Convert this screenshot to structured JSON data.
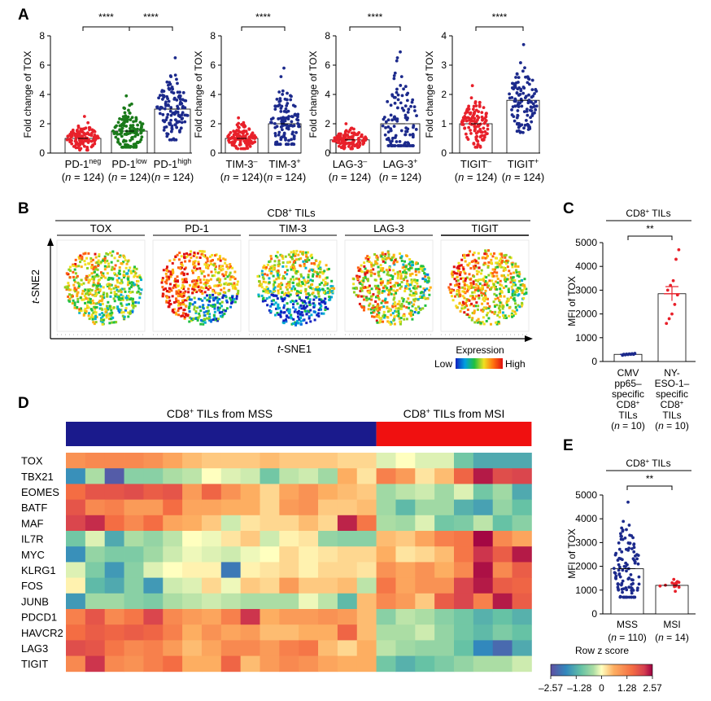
{
  "panel_letters": [
    "A",
    "B",
    "C",
    "D",
    "E"
  ],
  "colors": {
    "red": "#e8202a",
    "green": "#1a7a1a",
    "navy": "#1c2a8c",
    "heat_mss": "#1a1a8c",
    "heat_msi": "#f01010"
  },
  "chart_data": [
    {
      "panel": "A",
      "type": "scatter",
      "subtype": "dot-plot with mean bars",
      "title": "",
      "ylabel": "Fold change of TOX",
      "groups": [
        {
          "ylim": [
            0,
            8
          ],
          "yticks": [
            "0",
            "2",
            "4",
            "6",
            "8"
          ],
          "categories": [
            {
              "base": "PD-1",
              "sup": "neg",
              "n": "124",
              "mean": 1.0,
              "min": 0.2,
              "max": 2.5,
              "color": "#e8202a"
            },
            {
              "base": "PD-1",
              "sup": "low",
              "n": "124",
              "mean": 1.5,
              "min": 0.4,
              "max": 3.9,
              "color": "#1a7a1a"
            },
            {
              "base": "PD-1",
              "sup": "high",
              "n": "124",
              "mean": 3.0,
              "min": 0.9,
              "max": 6.5,
              "color": "#1c2a8c"
            }
          ],
          "comparisons": [
            {
              "from": 0,
              "to": 1,
              "label": "****"
            },
            {
              "from": 1,
              "to": 2,
              "label": "****"
            }
          ]
        },
        {
          "ylim": [
            0,
            8
          ],
          "yticks": [
            "0",
            "2",
            "4",
            "6",
            "8"
          ],
          "categories": [
            {
              "base": "TIM-3",
              "sup": "–",
              "n": "124",
              "mean": 1.0,
              "min": 0.3,
              "max": 2.4,
              "color": "#e8202a"
            },
            {
              "base": "TIM-3",
              "sup": "+",
              "n": "124",
              "mean": 2.0,
              "min": 0.6,
              "max": 5.8,
              "color": "#1c2a8c"
            }
          ],
          "comparisons": [
            {
              "from": 0,
              "to": 1,
              "label": "****"
            }
          ]
        },
        {
          "ylim": [
            0,
            8
          ],
          "yticks": [
            "0",
            "2",
            "4",
            "6",
            "8"
          ],
          "categories": [
            {
              "base": "LAG-3",
              "sup": "–",
              "n": "124",
              "mean": 0.9,
              "min": 0.3,
              "max": 2.0,
              "color": "#e8202a"
            },
            {
              "base": "LAG-3",
              "sup": "+",
              "n": "124",
              "mean": 2.0,
              "min": 0.5,
              "max": 6.9,
              "color": "#1c2a8c"
            }
          ],
          "comparisons": [
            {
              "from": 0,
              "to": 1,
              "label": "****"
            }
          ]
        },
        {
          "ylim": [
            0,
            4
          ],
          "yticks": [
            "0",
            "1",
            "2",
            "3",
            "4"
          ],
          "categories": [
            {
              "base": "TIGIT",
              "sup": "–",
              "n": "124",
              "mean": 1.0,
              "min": 0.2,
              "max": 2.3,
              "color": "#e8202a"
            },
            {
              "base": "TIGIT",
              "sup": "+",
              "n": "124",
              "mean": 1.8,
              "min": 0.7,
              "max": 3.7,
              "color": "#1c2a8c"
            }
          ],
          "comparisons": [
            {
              "from": 0,
              "to": 1,
              "label": "****"
            }
          ]
        }
      ]
    },
    {
      "panel": "B",
      "type": "scatter",
      "subtype": "t-SNE feature plots",
      "title": "CD8+ TILs",
      "title_parts": {
        "base": "CD8",
        "sup": "+",
        "rest": " TILs"
      },
      "markers": [
        "TOX",
        "PD-1",
        "TIM-3",
        "LAG-3",
        "TIGIT"
      ],
      "xlabel": {
        "italic": "t",
        "rest": "-SNE1"
      },
      "ylabel": {
        "italic": "t",
        "rest": "-SNE2"
      },
      "legend": {
        "title": "Expression",
        "low": "Low",
        "high": "High"
      }
    },
    {
      "panel": "C",
      "type": "bar",
      "title": "CD8+ TILs",
      "title_parts": {
        "base": "CD8",
        "sup": "+",
        "rest": " TILs"
      },
      "ylabel": "MFI of TOX",
      "ylim": [
        0,
        5000
      ],
      "yticks": [
        "0",
        "1000",
        "2000",
        "3000",
        "4000",
        "5000"
      ],
      "categories": [
        {
          "lines": [
            "CMV",
            "pp65–",
            "specific",
            "CD8+",
            "TILs",
            "(n = 10)"
          ],
          "mean": 300,
          "sem": 15,
          "color": "#1c2a8c",
          "points": [
            260,
            280,
            290,
            300,
            300,
            305,
            310,
            320,
            330,
            340
          ]
        },
        {
          "lines": [
            "NY-",
            "ESO-1–",
            "specific",
            "CD8+",
            "TILs",
            "(n = 10)"
          ],
          "mean": 2850,
          "sem": 300,
          "color": "#e8202a",
          "points": [
            1600,
            1800,
            2000,
            2400,
            2800,
            3000,
            3200,
            3400,
            4300,
            4700
          ]
        }
      ],
      "comparisons": [
        {
          "from": 0,
          "to": 1,
          "label": "**"
        }
      ]
    },
    {
      "panel": "D",
      "type": "heatmap",
      "groups": [
        {
          "label": "CD8+ TILs from MSS",
          "base": "CD8",
          "sup": "+",
          "rest": " TILs from MSS",
          "columns": 16,
          "color": "#1a1a8c"
        },
        {
          "label": "CD8+ TILs from MSI",
          "base": "CD8",
          "sup": "+",
          "rest": " TILs from MSI",
          "columns": 8,
          "color": "#f01010"
        }
      ],
      "rows": [
        "TOX",
        "TBX21",
        "EOMES",
        "BATF",
        "MAF",
        "IL7R",
        "MYC",
        "KLRG1",
        "FOS",
        "JUNB",
        "PDCD1",
        "HAVCR2",
        "LAG3",
        "TIGIT"
      ],
      "values": [
        [
          0.9,
          1.0,
          1.0,
          1.0,
          0.9,
          0.7,
          0.5,
          0.4,
          0.4,
          0.4,
          0.5,
          0.4,
          0.4,
          0.4,
          0.3,
          0.3,
          -0.2,
          0.0,
          -0.2,
          -0.2,
          -1.0,
          -1.4,
          -1.4,
          -1.4
        ],
        [
          -1.7,
          -0.5,
          -2.4,
          -0.8,
          -0.8,
          -0.5,
          -0.4,
          0.0,
          -0.2,
          -0.3,
          -1.0,
          -0.4,
          -0.3,
          -0.6,
          0.6,
          0.2,
          1.1,
          0.8,
          0.2,
          0.5,
          1.4,
          2.3,
          1.7,
          1.8
        ],
        [
          1.3,
          1.6,
          1.6,
          1.7,
          1.5,
          1.6,
          0.8,
          1.4,
          0.9,
          0.6,
          0.3,
          0.7,
          0.9,
          0.6,
          0.5,
          0.4,
          -0.6,
          -0.4,
          -0.3,
          -0.6,
          -0.2,
          -1.0,
          -0.6,
          -1.4
        ],
        [
          1.6,
          1.0,
          1.1,
          0.8,
          0.8,
          1.3,
          0.7,
          0.7,
          0.6,
          0.6,
          0.3,
          0.8,
          0.9,
          0.4,
          0.4,
          0.5,
          -0.6,
          -1.2,
          -0.6,
          -0.6,
          -1.3,
          -1.5,
          -0.7,
          -1.1
        ],
        [
          1.8,
          2.1,
          1.3,
          1.0,
          1.3,
          0.7,
          0.6,
          0.4,
          -0.3,
          0.2,
          0.3,
          0.3,
          0.5,
          0.3,
          2.2,
          1.2,
          -0.5,
          -0.6,
          -0.2,
          -1.0,
          -0.9,
          -0.4,
          -1.1,
          -0.8
        ],
        [
          -1.0,
          -0.2,
          -1.4,
          -0.5,
          -0.7,
          -0.4,
          0.0,
          -0.1,
          0.2,
          0.4,
          -0.3,
          0.1,
          0.2,
          -0.7,
          -0.8,
          -0.8,
          0.5,
          0.4,
          0.7,
          1.1,
          1.2,
          2.5,
          1.0,
          0.7
        ],
        [
          -1.7,
          -0.7,
          -0.9,
          -0.9,
          -0.6,
          -0.3,
          -0.1,
          -0.2,
          -0.3,
          -0.1,
          0.0,
          0.3,
          0.1,
          0.2,
          0.3,
          0.3,
          0.6,
          0.2,
          0.3,
          0.5,
          1.2,
          2.0,
          1.5,
          2.3
        ],
        [
          -0.2,
          -0.9,
          -1.6,
          -0.8,
          -0.2,
          0.0,
          0.1,
          0.1,
          -2.0,
          0.1,
          0.2,
          0.3,
          0.1,
          0.3,
          0.3,
          0.2,
          0.9,
          0.7,
          0.9,
          0.6,
          1.0,
          2.4,
          1.0,
          1.5
        ],
        [
          0.1,
          -1.2,
          -1.4,
          -0.8,
          -1.6,
          -0.3,
          -0.2,
          0.3,
          -0.1,
          0.4,
          0.3,
          0.8,
          0.4,
          0.4,
          0.5,
          -0.4,
          1.2,
          0.7,
          0.9,
          0.9,
          1.8,
          2.3,
          1.5,
          1.4
        ],
        [
          -1.6,
          -0.6,
          -0.6,
          -0.8,
          -0.9,
          -0.5,
          -0.4,
          -0.3,
          -0.4,
          -0.5,
          -0.5,
          -0.5,
          -0.1,
          -0.4,
          -1.2,
          0.5,
          1.0,
          0.8,
          0.4,
          1.5,
          1.8,
          1.1,
          2.3,
          1.5
        ],
        [
          1.1,
          1.6,
          1.0,
          1.2,
          1.8,
          1.0,
          0.8,
          0.7,
          1.1,
          2.0,
          0.6,
          0.8,
          0.8,
          0.9,
          0.8,
          0.5,
          -0.8,
          -0.4,
          -0.5,
          -0.8,
          -1.0,
          -1.3,
          -1.1,
          -1.3
        ],
        [
          1.3,
          1.5,
          1.4,
          1.5,
          1.4,
          1.1,
          0.6,
          0.9,
          0.7,
          0.8,
          0.5,
          0.5,
          0.6,
          0.6,
          1.4,
          0.5,
          -0.5,
          -0.5,
          -0.3,
          -0.7,
          -1.0,
          -1.2,
          -0.9,
          -1.1
        ],
        [
          1.7,
          1.6,
          1.2,
          1.0,
          1.1,
          0.8,
          0.5,
          0.7,
          1.0,
          1.0,
          0.8,
          1.1,
          1.2,
          0.5,
          0.3,
          0.6,
          -0.4,
          -0.6,
          -0.7,
          -0.7,
          -1.1,
          -1.8,
          -2.2,
          -1.4
        ],
        [
          1.0,
          2.0,
          1.0,
          0.9,
          1.1,
          1.3,
          0.6,
          0.6,
          1.4,
          0.5,
          0.8,
          1.0,
          0.9,
          0.7,
          0.6,
          0.6,
          -1.0,
          -1.3,
          -1.1,
          -0.9,
          -0.7,
          -0.5,
          -0.5,
          -0.3
        ]
      ],
      "legend": {
        "title": "Row z score",
        "range": [
          -2.57,
          2.57
        ],
        "ticks": [
          "–2.57",
          "–1.28",
          "0",
          "1.28",
          "2.57"
        ]
      }
    },
    {
      "panel": "E",
      "type": "scatter",
      "subtype": "dot-plot with mean bars",
      "title": "CD8+ TILs",
      "title_parts": {
        "base": "CD8",
        "sup": "+",
        "rest": " TILs"
      },
      "ylabel": "MFI of TOX",
      "ylim": [
        0,
        5000
      ],
      "yticks": [
        "0",
        "1000",
        "2000",
        "3000",
        "4000",
        "5000"
      ],
      "categories": [
        {
          "lines": [
            "MSS",
            "(n = 110)"
          ],
          "n": 110,
          "mean": 1900,
          "min": 700,
          "max": 4700,
          "color": "#1c2a8c"
        },
        {
          "lines": [
            "MSI",
            "(n = 14)"
          ],
          "n": 14,
          "mean": 1200,
          "min": 950,
          "max": 1450,
          "color": "#e8202a"
        }
      ],
      "comparisons": [
        {
          "from": 0,
          "to": 1,
          "label": "**"
        }
      ]
    }
  ]
}
